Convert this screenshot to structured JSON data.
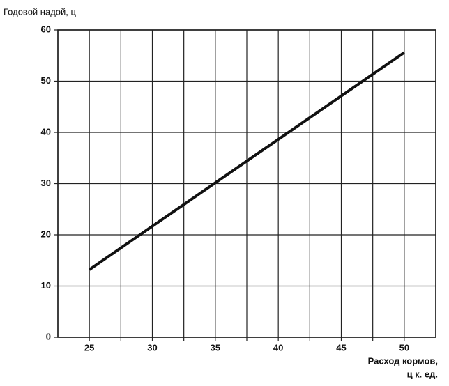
{
  "chart_data": {
    "type": "line",
    "ylabel": "Годовой надой, ц",
    "xlabel": [
      "Расход кормов,",
      "ц к. ед."
    ],
    "x": [
      25,
      50
    ],
    "series": [
      {
        "color": "#111111",
        "values": [
          13.2,
          55.6
        ]
      }
    ],
    "xlim": [
      22.5,
      52.5
    ],
    "xticks": [
      25,
      30,
      35,
      40,
      45,
      50
    ],
    "x_minor_grid": [
      27.5,
      32.5,
      37.5,
      42.5,
      47.5
    ],
    "ylim": [
      0,
      60
    ],
    "yticks": [
      0,
      10,
      20,
      30,
      40,
      50,
      60
    ],
    "grid": true
  }
}
